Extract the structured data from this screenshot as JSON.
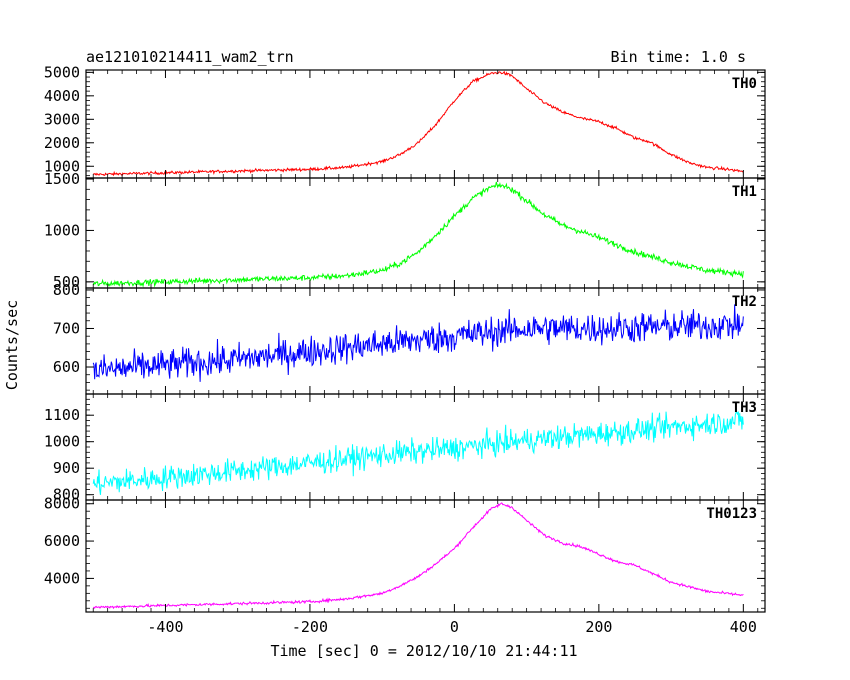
{
  "chart_data": {
    "type": "line",
    "title_left": "ae121010214411_wam2_trn",
    "title_right": "Bin time: 1.0 s",
    "xlabel": "Time [sec] 0 = 2012/10/10 21:44:11",
    "ylabel": "Counts/sec",
    "xlim": [
      -510,
      430
    ],
    "x_ticks": [
      -400,
      -200,
      0,
      200,
      400
    ],
    "x_tick_labels": [
      "-400",
      "-200",
      "0",
      "200",
      "400"
    ],
    "panels": [
      {
        "name": "TH0",
        "color": "#ff0000",
        "ylim": [
          500,
          5100
        ],
        "y_ticks": [
          1000,
          2000,
          3000,
          4000,
          5000
        ],
        "y_tick_labels": [
          "1000",
          "2000",
          "3000",
          "4000",
          "5000"
        ],
        "x": [
          -500,
          -400,
          -300,
          -200,
          -150,
          -100,
          -75,
          -50,
          -25,
          0,
          25,
          50,
          65,
          80,
          100,
          125,
          150,
          175,
          200,
          225,
          250,
          270,
          300,
          325,
          350,
          375,
          400
        ],
        "y": [
          650,
          720,
          800,
          870,
          950,
          1200,
          1500,
          2000,
          2800,
          3800,
          4600,
          4950,
          5000,
          4850,
          4300,
          3700,
          3300,
          3050,
          2900,
          2600,
          2200,
          2050,
          1500,
          1150,
          950,
          880,
          780
        ],
        "noise": 60
      },
      {
        "name": "TH1",
        "color": "#00ff00",
        "ylim": [
          440,
          1510
        ],
        "y_ticks": [
          500,
          1000,
          1500
        ],
        "y_tick_labels": [
          "500",
          "1000",
          "1500"
        ],
        "x": [
          -500,
          -400,
          -300,
          -200,
          -150,
          -100,
          -75,
          -50,
          -25,
          0,
          25,
          50,
          65,
          80,
          100,
          125,
          150,
          175,
          200,
          225,
          250,
          300,
          350,
          400
        ],
        "y": [
          480,
          500,
          520,
          540,
          560,
          610,
          680,
          790,
          960,
          1140,
          1310,
          1420,
          1440,
          1400,
          1290,
          1150,
          1050,
          990,
          930,
          860,
          790,
          690,
          610,
          580
        ],
        "noise": 28
      },
      {
        "name": "TH2",
        "color": "#0000ff",
        "ylim": [
          530,
          805
        ],
        "y_ticks": [
          600,
          700,
          800
        ],
        "y_tick_labels": [
          "600",
          "700",
          "800"
        ],
        "x": [
          -500,
          -400,
          -300,
          -200,
          -100,
          0,
          100,
          200,
          300,
          400
        ],
        "y": [
          590,
          605,
          620,
          640,
          660,
          680,
          700,
          700,
          705,
          710
        ],
        "noise": 40
      },
      {
        "name": "TH3",
        "color": "#00ffff",
        "ylim": [
          780,
          1180
        ],
        "y_ticks": [
          800,
          900,
          1000,
          1100
        ],
        "y_tick_labels": [
          "800",
          "900",
          "1000",
          "1100"
        ],
        "x": [
          -500,
          -400,
          -300,
          -200,
          -100,
          0,
          100,
          200,
          300,
          400
        ],
        "y": [
          840,
          865,
          890,
          920,
          950,
          975,
          1005,
          1030,
          1055,
          1080
        ],
        "noise": 45
      },
      {
        "name": "TH0123",
        "color": "#ff00ff",
        "ylim": [
          2200,
          8200
        ],
        "y_ticks": [
          4000,
          6000,
          8000
        ],
        "y_tick_labels": [
          "4000",
          "6000",
          "8000"
        ],
        "x": [
          -500,
          -400,
          -300,
          -200,
          -150,
          -100,
          -75,
          -50,
          -25,
          0,
          25,
          50,
          65,
          80,
          100,
          125,
          150,
          175,
          200,
          225,
          250,
          300,
          350,
          400
        ],
        "y": [
          2450,
          2550,
          2650,
          2750,
          2900,
          3200,
          3600,
          4100,
          4800,
          5600,
          6700,
          7700,
          8000,
          7800,
          7100,
          6300,
          5900,
          5700,
          5300,
          4900,
          4700,
          3800,
          3300,
          3100
        ],
        "noise": 70
      }
    ]
  }
}
